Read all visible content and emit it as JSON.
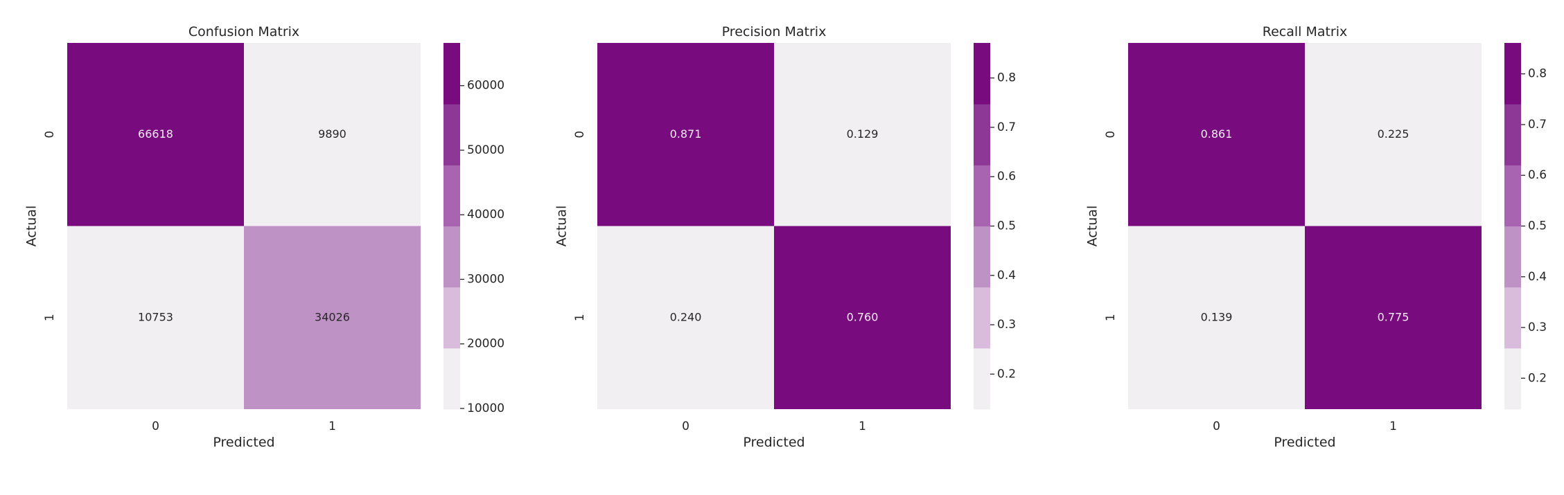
{
  "colors": {
    "colorbar_bins": [
      "#f1eff2",
      "#d9bcdb",
      "#bf92c5",
      "#a864b0",
      "#8d3797",
      "#780b7d"
    ],
    "light_text": "#f5eef7",
    "dark_text": "#262626"
  },
  "chart_data": [
    {
      "type": "heatmap",
      "title": "Confusion Matrix",
      "xlabel": "Predicted",
      "ylabel": "Actual",
      "x_categories": [
        "0",
        "1"
      ],
      "y_categories": [
        "0",
        "1"
      ],
      "values": [
        [
          66618,
          9890
        ],
        [
          10753,
          34026
        ]
      ],
      "cell_labels": [
        [
          "66618",
          "9890"
        ],
        [
          "10753",
          "34026"
        ]
      ],
      "colorbar": {
        "range": [
          9890,
          66618
        ],
        "ticks": [
          10000,
          20000,
          30000,
          40000,
          50000,
          60000
        ],
        "tick_labels": [
          "10000",
          "20000",
          "30000",
          "40000",
          "50000",
          "60000"
        ]
      }
    },
    {
      "type": "heatmap",
      "title": "Precision Matrix",
      "xlabel": "Predicted",
      "ylabel": "Actual",
      "x_categories": [
        "0",
        "1"
      ],
      "y_categories": [
        "0",
        "1"
      ],
      "values": [
        [
          0.871,
          0.129
        ],
        [
          0.24,
          0.76
        ]
      ],
      "cell_labels": [
        [
          "0.871",
          "0.129"
        ],
        [
          "0.240",
          "0.760"
        ]
      ],
      "colorbar": {
        "range": [
          0.129,
          0.871
        ],
        "ticks": [
          0.2,
          0.3,
          0.4,
          0.5,
          0.6,
          0.7,
          0.8
        ],
        "tick_labels": [
          "0.2",
          "0.3",
          "0.4",
          "0.5",
          "0.6",
          "0.7",
          "0.8"
        ]
      }
    },
    {
      "type": "heatmap",
      "title": "Recall Matrix",
      "xlabel": "Predicted",
      "ylabel": "Actual",
      "x_categories": [
        "0",
        "1"
      ],
      "y_categories": [
        "0",
        "1"
      ],
      "values": [
        [
          0.861,
          0.225
        ],
        [
          0.139,
          0.775
        ]
      ],
      "cell_labels": [
        [
          "0.861",
          "0.225"
        ],
        [
          "0.139",
          "0.775"
        ]
      ],
      "colorbar": {
        "range": [
          0.139,
          0.861
        ],
        "ticks": [
          0.2,
          0.3,
          0.4,
          0.5,
          0.6,
          0.7,
          0.8
        ],
        "tick_labels": [
          "0.2",
          "0.3",
          "0.4",
          "0.5",
          "0.6",
          "0.7",
          "0.8"
        ]
      }
    }
  ]
}
